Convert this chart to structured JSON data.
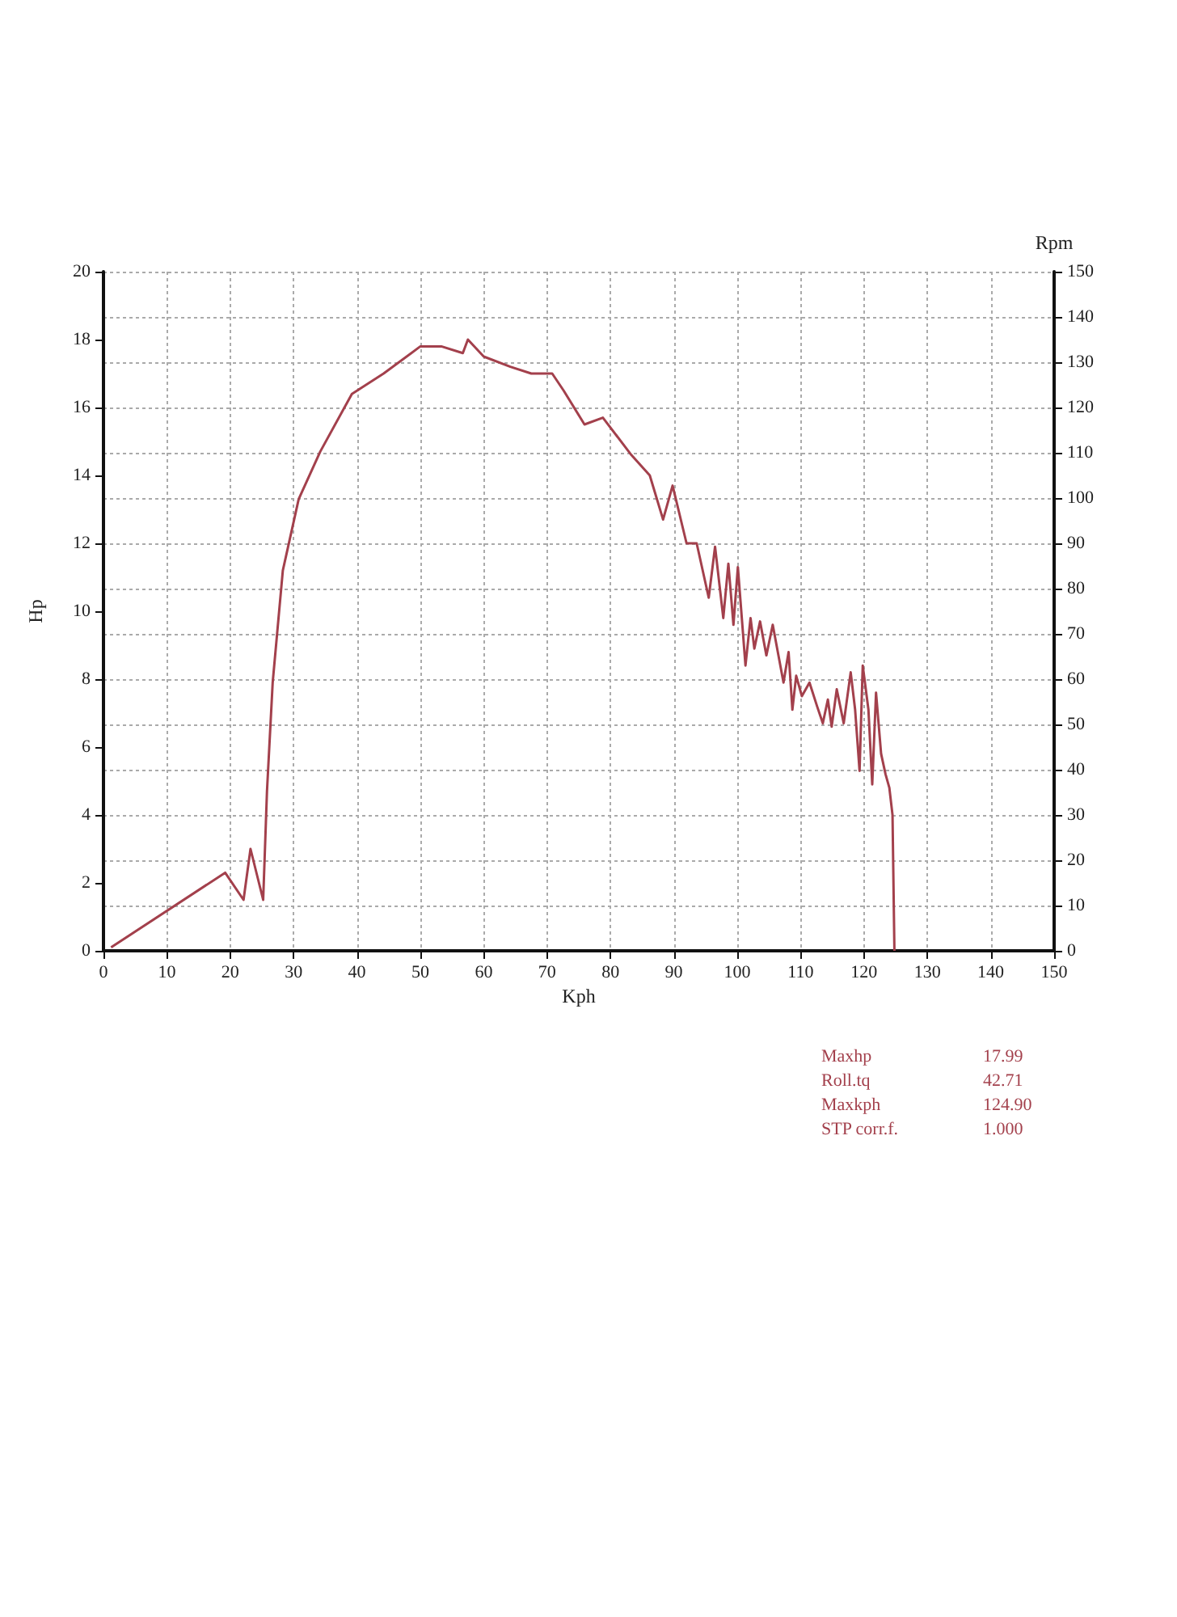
{
  "chart_data": {
    "type": "line",
    "xlabel": "Kph",
    "ylabel": "Hp",
    "y2label": "Rpm",
    "xlim": [
      0,
      150
    ],
    "xticks": [
      0,
      10,
      20,
      30,
      40,
      50,
      60,
      70,
      80,
      90,
      100,
      110,
      120,
      130,
      140,
      150
    ],
    "ylim": [
      0,
      20
    ],
    "yticks": [
      0,
      2,
      4,
      6,
      8,
      10,
      12,
      14,
      16,
      18,
      20
    ],
    "y2lim": [
      0,
      150
    ],
    "y2ticks": [
      0,
      10,
      20,
      30,
      40,
      50,
      60,
      70,
      80,
      90,
      100,
      110,
      120,
      130,
      140,
      150
    ],
    "grid": true,
    "marker": "none",
    "line_style": "solid",
    "series": [
      {
        "color": "#a3404c",
        "x": [
          1.2,
          19.2,
          22.1,
          23.2,
          25.2,
          25.8,
          26.7,
          28.3,
          30.8,
          34.2,
          39.2,
          44.2,
          50,
          53.3,
          56.7,
          57.5,
          60,
          64.2,
          67.5,
          70.8,
          72.6,
          75.9,
          78.8,
          83.3,
          86.2,
          88.3,
          89.8,
          92.0,
          93.6,
          95.5,
          96.5,
          97.8,
          98.6,
          99.4,
          100.1,
          101.3,
          102.1,
          102.7,
          103.6,
          104.6,
          105.6,
          107.3,
          108.1,
          108.7,
          109.3,
          110.2,
          111.4,
          112.6,
          113.5,
          114.3,
          114.9,
          115.7,
          116.8,
          117.9,
          118.6,
          119.3,
          119.8,
          120.7,
          121.3,
          121.9,
          122.7,
          123.4,
          124.0,
          124.5,
          124.8
        ],
        "values": [
          0.1,
          2.3,
          1.5,
          3.0,
          1.5,
          4.7,
          7.9,
          11.2,
          13.3,
          14.7,
          16.4,
          17.0,
          17.8,
          17.8,
          17.6,
          18.0,
          17.5,
          17.2,
          17.0,
          17.0,
          16.5,
          15.5,
          15.7,
          14.6,
          14.0,
          12.7,
          13.7,
          12.0,
          12.0,
          10.4,
          11.9,
          9.8,
          11.4,
          9.6,
          11.3,
          8.4,
          9.8,
          8.9,
          9.7,
          8.7,
          9.6,
          7.9,
          8.8,
          7.1,
          8.1,
          7.5,
          7.9,
          7.2,
          6.7,
          7.4,
          6.6,
          7.7,
          6.7,
          8.2,
          7.1,
          5.3,
          8.4,
          7.1,
          4.9,
          7.6,
          5.8,
          5.2,
          4.8,
          4.0,
          0
        ]
      }
    ],
    "annotations": [
      "Maxhp 17.99",
      "Roll.tq 42.71",
      "Maxkph 124.90",
      "STP corr.f. 1.000"
    ]
  }
}
